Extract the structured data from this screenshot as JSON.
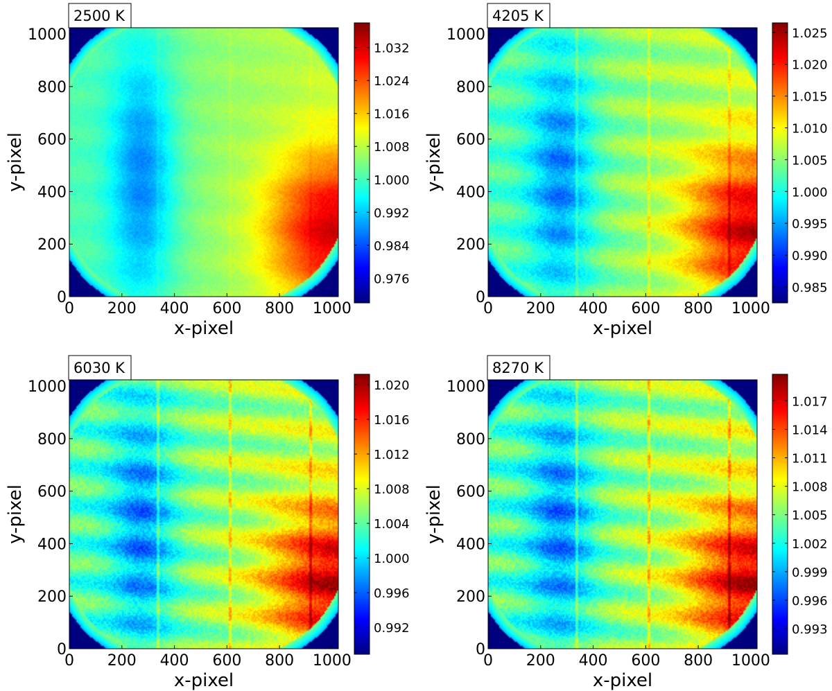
{
  "figure": {
    "colormap": "jet",
    "colormap_stops": [
      "#00007f",
      "#0000ff",
      "#007fff",
      "#00ffff",
      "#7fff7f",
      "#ffff00",
      "#ff7f00",
      "#ff0000",
      "#7f0000"
    ]
  },
  "chart_data": [
    {
      "type": "heatmap",
      "title": "2500 K",
      "xlabel": "x-pixel",
      "ylabel": "y-pixel",
      "xlim": [
        0,
        1024
      ],
      "ylim": [
        0,
        1024
      ],
      "xticks": [
        "0",
        "200",
        "400",
        "600",
        "800",
        "1000"
      ],
      "yticks": [
        "0",
        "200",
        "400",
        "600",
        "800",
        "1000"
      ],
      "colorbar": {
        "range": [
          0.97,
          1.038
        ],
        "ticks": [
          "0.976",
          "0.984",
          "0.992",
          "1.000",
          "1.008",
          "1.016",
          "1.024",
          "1.032"
        ],
        "tick_values": [
          0.976,
          0.984,
          0.992,
          1.0,
          1.008,
          1.016,
          1.024,
          1.032
        ]
      }
    },
    {
      "type": "heatmap",
      "title": "4205 K",
      "xlabel": "x-pixel",
      "ylabel": "y-pixel",
      "xlim": [
        0,
        1024
      ],
      "ylim": [
        0,
        1024
      ],
      "xticks": [
        "0",
        "200",
        "400",
        "600",
        "800",
        "1000"
      ],
      "yticks": [
        "0",
        "200",
        "400",
        "600",
        "800",
        "1000"
      ],
      "colorbar": {
        "range": [
          0.9825,
          1.0265
        ],
        "ticks": [
          "0.985",
          "0.990",
          "0.995",
          "1.000",
          "1.005",
          "1.010",
          "1.015",
          "1.020",
          "1.025"
        ],
        "tick_values": [
          0.985,
          0.99,
          0.995,
          1.0,
          1.005,
          1.01,
          1.015,
          1.02,
          1.025
        ]
      }
    },
    {
      "type": "heatmap",
      "title": "6030 K",
      "xlabel": "x-pixel",
      "ylabel": "y-pixel",
      "xlim": [
        0,
        1024
      ],
      "ylim": [
        0,
        1024
      ],
      "xticks": [
        "0",
        "200",
        "400",
        "600",
        "800",
        "1000"
      ],
      "yticks": [
        "0",
        "200",
        "400",
        "600",
        "800",
        "1000"
      ],
      "colorbar": {
        "range": [
          0.9889,
          1.0212
        ],
        "ticks": [
          "0.992",
          "0.996",
          "1.000",
          "1.004",
          "1.008",
          "1.012",
          "1.016",
          "1.020"
        ],
        "tick_values": [
          0.992,
          0.996,
          1.0,
          1.004,
          1.008,
          1.012,
          1.016,
          1.02
        ]
      }
    },
    {
      "type": "heatmap",
      "title": "8270 K",
      "xlabel": "x-pixel",
      "ylabel": "y-pixel",
      "xlim": [
        0,
        1024
      ],
      "ylim": [
        0,
        1024
      ],
      "xticks": [
        "0",
        "200",
        "400",
        "600",
        "800",
        "1000"
      ],
      "yticks": [
        "0",
        "200",
        "400",
        "600",
        "800",
        "1000"
      ],
      "colorbar": {
        "range": [
          0.9903,
          1.0198
        ],
        "ticks": [
          "0.993",
          "0.996",
          "0.999",
          "1.002",
          "1.005",
          "1.008",
          "1.011",
          "1.014",
          "1.017"
        ],
        "tick_values": [
          0.993,
          0.996,
          0.999,
          1.002,
          1.005,
          1.008,
          1.011,
          1.014,
          1.017
        ]
      }
    }
  ]
}
